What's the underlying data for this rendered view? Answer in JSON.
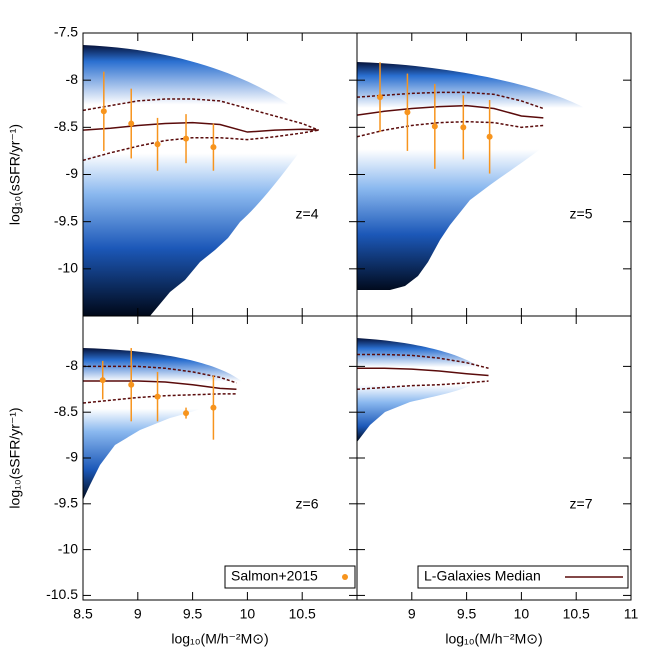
{
  "chart_data": [
    {
      "type": "line",
      "annotation": "z=4",
      "ylabel": "log₁₀(sSFR/yr⁻¹)",
      "xlim": [
        8.5,
        11.0
      ],
      "ylim": [
        -10.5,
        -7.5
      ],
      "yticks": [
        -7.5,
        -8.0,
        -8.5,
        -9.0,
        -9.5,
        -10.0
      ],
      "x": [
        8.5,
        8.75,
        9.0,
        9.25,
        9.5,
        9.75,
        10.0,
        10.25,
        10.5,
        10.65
      ],
      "series": [
        {
          "color": "#5a0b0b",
          "values": [
            -8.53,
            -8.51,
            -8.48,
            -8.46,
            -8.45,
            -8.47,
            -8.55,
            -8.53,
            -8.52,
            -8.53
          ]
        },
        {
          "color": "#5a0b0b",
          "dash": true,
          "values": [
            -8.32,
            -8.27,
            -8.22,
            -8.2,
            -8.2,
            -8.22,
            -8.3,
            -8.38,
            -8.46,
            -8.53
          ]
        },
        {
          "color": "#5a0b0b",
          "dash": true,
          "values": [
            -8.85,
            -8.77,
            -8.7,
            -8.64,
            -8.61,
            -8.61,
            -8.63,
            -8.6,
            -8.56,
            -8.53
          ]
        }
      ],
      "points": {
        "color": "#f7941d",
        "x": [
          8.69,
          8.94,
          9.18,
          9.44,
          9.69
        ],
        "values": [
          -8.33,
          -8.46,
          -8.68,
          -8.62,
          -8.71
        ],
        "errors": [
          0.42,
          0.37,
          0.28,
          0.26,
          0.25
        ]
      }
    },
    {
      "type": "line",
      "annotation": "z=5",
      "xlim": [
        8.5,
        11.0
      ],
      "ylim": [
        -10.5,
        -7.5
      ],
      "x": [
        8.5,
        8.75,
        9.0,
        9.25,
        9.5,
        9.75,
        10.0,
        10.2
      ],
      "series": [
        {
          "color": "#5a0b0b",
          "values": [
            -8.37,
            -8.33,
            -8.3,
            -8.28,
            -8.27,
            -8.3,
            -8.38,
            -8.4
          ]
        },
        {
          "color": "#5a0b0b",
          "dash": true,
          "values": [
            -8.18,
            -8.16,
            -8.14,
            -8.13,
            -8.13,
            -8.15,
            -8.22,
            -8.3
          ]
        },
        {
          "color": "#5a0b0b",
          "dash": true,
          "values": [
            -8.6,
            -8.53,
            -8.48,
            -8.45,
            -8.44,
            -8.45,
            -8.5,
            -8.48
          ]
        }
      ],
      "points": {
        "color": "#f7941d",
        "x": [
          8.71,
          8.96,
          9.21,
          9.47,
          9.71
        ],
        "values": [
          -8.18,
          -8.34,
          -8.49,
          -8.5,
          -8.6
        ],
        "errors": [
          0.37,
          0.41,
          0.45,
          0.34,
          0.39
        ]
      }
    },
    {
      "type": "line",
      "annotation": "z=6",
      "ylabel": "log₁₀(sSFR/yr⁻¹)",
      "xlabel": "log₁₀(M/h⁻²M⊙)",
      "legend": "lower right",
      "xlim": [
        8.5,
        11.0
      ],
      "ylim": [
        -10.55,
        -7.45
      ],
      "xticks": [
        8.5,
        9.0,
        9.5,
        10.0,
        10.5
      ],
      "yticks": [
        -8.0,
        -8.5,
        -9.0,
        -9.5,
        -10.0,
        -10.5
      ],
      "x": [
        8.5,
        8.75,
        9.0,
        9.25,
        9.5,
        9.75,
        9.9
      ],
      "series": [
        {
          "color": "#5a0b0b",
          "values": [
            -8.16,
            -8.16,
            -8.16,
            -8.17,
            -8.2,
            -8.24,
            -8.25
          ]
        },
        {
          "color": "#5a0b0b",
          "dash": true,
          "values": [
            -8.0,
            -8.0,
            -8.0,
            -8.02,
            -8.06,
            -8.12,
            -8.18
          ]
        },
        {
          "color": "#5a0b0b",
          "dash": true,
          "values": [
            -8.4,
            -8.37,
            -8.34,
            -8.32,
            -8.31,
            -8.3,
            -8.3
          ]
        }
      ],
      "points": {
        "name": "Salmon+2015",
        "color": "#f7941d",
        "x": [
          8.68,
          8.94,
          9.18,
          9.44,
          9.69
        ],
        "values": [
          -8.15,
          -8.2,
          -8.33,
          -8.51,
          -8.45
        ],
        "errors": [
          0.21,
          0.4,
          0.27,
          0.06,
          0.35
        ]
      }
    },
    {
      "type": "line",
      "annotation": "z=7",
      "xlabel": "log₁₀(M/h⁻²M⊙)",
      "legend": "lower right",
      "xlim": [
        8.5,
        11.0
      ],
      "ylim": [
        -10.55,
        -7.45
      ],
      "xticks": [
        9.0,
        9.5,
        10.0,
        10.5,
        11.0
      ],
      "x": [
        8.5,
        8.75,
        9.0,
        9.25,
        9.5,
        9.7
      ],
      "series": [
        {
          "name": "L-Galaxies Median",
          "color": "#5a0b0b",
          "values": [
            -8.02,
            -8.02,
            -8.03,
            -8.05,
            -8.08,
            -8.1
          ]
        },
        {
          "color": "#5a0b0b",
          "dash": true,
          "values": [
            -7.87,
            -7.87,
            -7.88,
            -7.91,
            -7.96,
            -8.02
          ]
        },
        {
          "color": "#5a0b0b",
          "dash": true,
          "values": [
            -8.25,
            -8.23,
            -8.21,
            -8.2,
            -8.18,
            -8.16
          ]
        }
      ]
    }
  ]
}
